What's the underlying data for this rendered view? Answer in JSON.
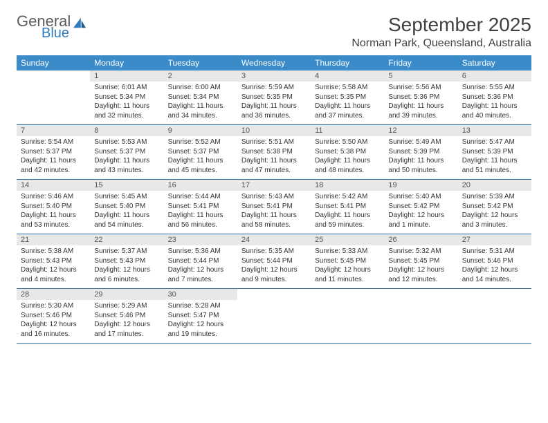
{
  "logo": {
    "line1": "General",
    "line2": "Blue"
  },
  "title": "September 2025",
  "location": "Norman Park, Queensland, Australia",
  "colors": {
    "header_bg": "#3b8bc9",
    "header_text": "#ffffff",
    "daynum_bg": "#e8e8e8",
    "daynum_text": "#555555",
    "body_text": "#333333",
    "rule": "#2f6fa8",
    "logo_gray": "#5a5a5a",
    "logo_blue": "#2f7bbf",
    "title_text": "#404040"
  },
  "dayNames": [
    "Sunday",
    "Monday",
    "Tuesday",
    "Wednesday",
    "Thursday",
    "Friday",
    "Saturday"
  ],
  "weeks": [
    [
      {
        "n": "",
        "sr": "",
        "ss": "",
        "dl": ""
      },
      {
        "n": "1",
        "sr": "Sunrise: 6:01 AM",
        "ss": "Sunset: 5:34 PM",
        "dl": "Daylight: 11 hours and 32 minutes."
      },
      {
        "n": "2",
        "sr": "Sunrise: 6:00 AM",
        "ss": "Sunset: 5:34 PM",
        "dl": "Daylight: 11 hours and 34 minutes."
      },
      {
        "n": "3",
        "sr": "Sunrise: 5:59 AM",
        "ss": "Sunset: 5:35 PM",
        "dl": "Daylight: 11 hours and 36 minutes."
      },
      {
        "n": "4",
        "sr": "Sunrise: 5:58 AM",
        "ss": "Sunset: 5:35 PM",
        "dl": "Daylight: 11 hours and 37 minutes."
      },
      {
        "n": "5",
        "sr": "Sunrise: 5:56 AM",
        "ss": "Sunset: 5:36 PM",
        "dl": "Daylight: 11 hours and 39 minutes."
      },
      {
        "n": "6",
        "sr": "Sunrise: 5:55 AM",
        "ss": "Sunset: 5:36 PM",
        "dl": "Daylight: 11 hours and 40 minutes."
      }
    ],
    [
      {
        "n": "7",
        "sr": "Sunrise: 5:54 AM",
        "ss": "Sunset: 5:37 PM",
        "dl": "Daylight: 11 hours and 42 minutes."
      },
      {
        "n": "8",
        "sr": "Sunrise: 5:53 AM",
        "ss": "Sunset: 5:37 PM",
        "dl": "Daylight: 11 hours and 43 minutes."
      },
      {
        "n": "9",
        "sr": "Sunrise: 5:52 AM",
        "ss": "Sunset: 5:37 PM",
        "dl": "Daylight: 11 hours and 45 minutes."
      },
      {
        "n": "10",
        "sr": "Sunrise: 5:51 AM",
        "ss": "Sunset: 5:38 PM",
        "dl": "Daylight: 11 hours and 47 minutes."
      },
      {
        "n": "11",
        "sr": "Sunrise: 5:50 AM",
        "ss": "Sunset: 5:38 PM",
        "dl": "Daylight: 11 hours and 48 minutes."
      },
      {
        "n": "12",
        "sr": "Sunrise: 5:49 AM",
        "ss": "Sunset: 5:39 PM",
        "dl": "Daylight: 11 hours and 50 minutes."
      },
      {
        "n": "13",
        "sr": "Sunrise: 5:47 AM",
        "ss": "Sunset: 5:39 PM",
        "dl": "Daylight: 11 hours and 51 minutes."
      }
    ],
    [
      {
        "n": "14",
        "sr": "Sunrise: 5:46 AM",
        "ss": "Sunset: 5:40 PM",
        "dl": "Daylight: 11 hours and 53 minutes."
      },
      {
        "n": "15",
        "sr": "Sunrise: 5:45 AM",
        "ss": "Sunset: 5:40 PM",
        "dl": "Daylight: 11 hours and 54 minutes."
      },
      {
        "n": "16",
        "sr": "Sunrise: 5:44 AM",
        "ss": "Sunset: 5:41 PM",
        "dl": "Daylight: 11 hours and 56 minutes."
      },
      {
        "n": "17",
        "sr": "Sunrise: 5:43 AM",
        "ss": "Sunset: 5:41 PM",
        "dl": "Daylight: 11 hours and 58 minutes."
      },
      {
        "n": "18",
        "sr": "Sunrise: 5:42 AM",
        "ss": "Sunset: 5:41 PM",
        "dl": "Daylight: 11 hours and 59 minutes."
      },
      {
        "n": "19",
        "sr": "Sunrise: 5:40 AM",
        "ss": "Sunset: 5:42 PM",
        "dl": "Daylight: 12 hours and 1 minute."
      },
      {
        "n": "20",
        "sr": "Sunrise: 5:39 AM",
        "ss": "Sunset: 5:42 PM",
        "dl": "Daylight: 12 hours and 3 minutes."
      }
    ],
    [
      {
        "n": "21",
        "sr": "Sunrise: 5:38 AM",
        "ss": "Sunset: 5:43 PM",
        "dl": "Daylight: 12 hours and 4 minutes."
      },
      {
        "n": "22",
        "sr": "Sunrise: 5:37 AM",
        "ss": "Sunset: 5:43 PM",
        "dl": "Daylight: 12 hours and 6 minutes."
      },
      {
        "n": "23",
        "sr": "Sunrise: 5:36 AM",
        "ss": "Sunset: 5:44 PM",
        "dl": "Daylight: 12 hours and 7 minutes."
      },
      {
        "n": "24",
        "sr": "Sunrise: 5:35 AM",
        "ss": "Sunset: 5:44 PM",
        "dl": "Daylight: 12 hours and 9 minutes."
      },
      {
        "n": "25",
        "sr": "Sunrise: 5:33 AM",
        "ss": "Sunset: 5:45 PM",
        "dl": "Daylight: 12 hours and 11 minutes."
      },
      {
        "n": "26",
        "sr": "Sunrise: 5:32 AM",
        "ss": "Sunset: 5:45 PM",
        "dl": "Daylight: 12 hours and 12 minutes."
      },
      {
        "n": "27",
        "sr": "Sunrise: 5:31 AM",
        "ss": "Sunset: 5:46 PM",
        "dl": "Daylight: 12 hours and 14 minutes."
      }
    ],
    [
      {
        "n": "28",
        "sr": "Sunrise: 5:30 AM",
        "ss": "Sunset: 5:46 PM",
        "dl": "Daylight: 12 hours and 16 minutes."
      },
      {
        "n": "29",
        "sr": "Sunrise: 5:29 AM",
        "ss": "Sunset: 5:46 PM",
        "dl": "Daylight: 12 hours and 17 minutes."
      },
      {
        "n": "30",
        "sr": "Sunrise: 5:28 AM",
        "ss": "Sunset: 5:47 PM",
        "dl": "Daylight: 12 hours and 19 minutes."
      },
      {
        "n": "",
        "sr": "",
        "ss": "",
        "dl": ""
      },
      {
        "n": "",
        "sr": "",
        "ss": "",
        "dl": ""
      },
      {
        "n": "",
        "sr": "",
        "ss": "",
        "dl": ""
      },
      {
        "n": "",
        "sr": "",
        "ss": "",
        "dl": ""
      }
    ]
  ]
}
